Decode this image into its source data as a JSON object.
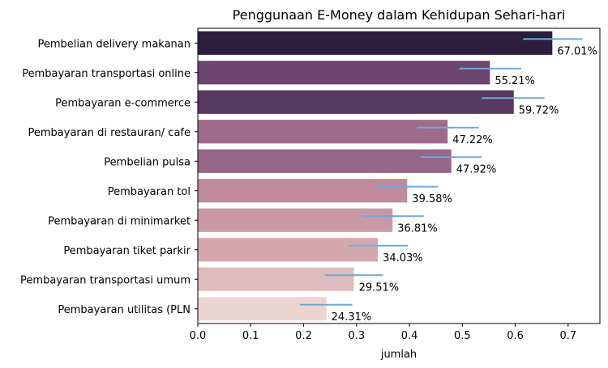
{
  "chart_data": {
    "type": "bar",
    "orientation": "horizontal",
    "title": "Penggunaan E-Money dalam Kehidupan Sehari-hari",
    "xlabel": "jumlah",
    "ylabel": "",
    "xlim": [
      0,
      0.76
    ],
    "xticks": [
      "0.0",
      "0.1",
      "0.2",
      "0.3",
      "0.4",
      "0.5",
      "0.6",
      "0.7"
    ],
    "grid": false,
    "categories": [
      "Pembelian delivery makanan",
      "Pembayaran transportasi online",
      "Pembayaran e-commerce",
      "Pembayaran di restauran/ cafe",
      "Pembelian pulsa",
      "Pembayaran tol",
      "Pembayaran di minimarket",
      "Pembayaran tiket parkir",
      "Pembayaran transportasi umum",
      "Pembayaran utilitas (PLN"
    ],
    "values": [
      0.6701,
      0.5521,
      0.5972,
      0.4722,
      0.4792,
      0.3958,
      0.3681,
      0.3403,
      0.2951,
      0.2431
    ],
    "value_labels": [
      "67.01%",
      "55.21%",
      "59.72%",
      "47.22%",
      "47.92%",
      "39.58%",
      "36.81%",
      "34.03%",
      "29.51%",
      "24.31%"
    ],
    "error_bars": [
      [
        0.615,
        0.727
      ],
      [
        0.494,
        0.611
      ],
      [
        0.537,
        0.655
      ],
      [
        0.414,
        0.531
      ],
      [
        0.421,
        0.537
      ],
      [
        0.336,
        0.454
      ],
      [
        0.311,
        0.427
      ],
      [
        0.285,
        0.397
      ],
      [
        0.24,
        0.35
      ],
      [
        0.193,
        0.292
      ]
    ],
    "colors": [
      "#2d1e3e",
      "#6c4570",
      "#573962",
      "#9e6b8b",
      "#966788",
      "#bd8b9c",
      "#c99aa5",
      "#d4a7ae",
      "#dfbcbd",
      "#ecd5d1"
    ],
    "error_color": "#6fa8dc"
  }
}
